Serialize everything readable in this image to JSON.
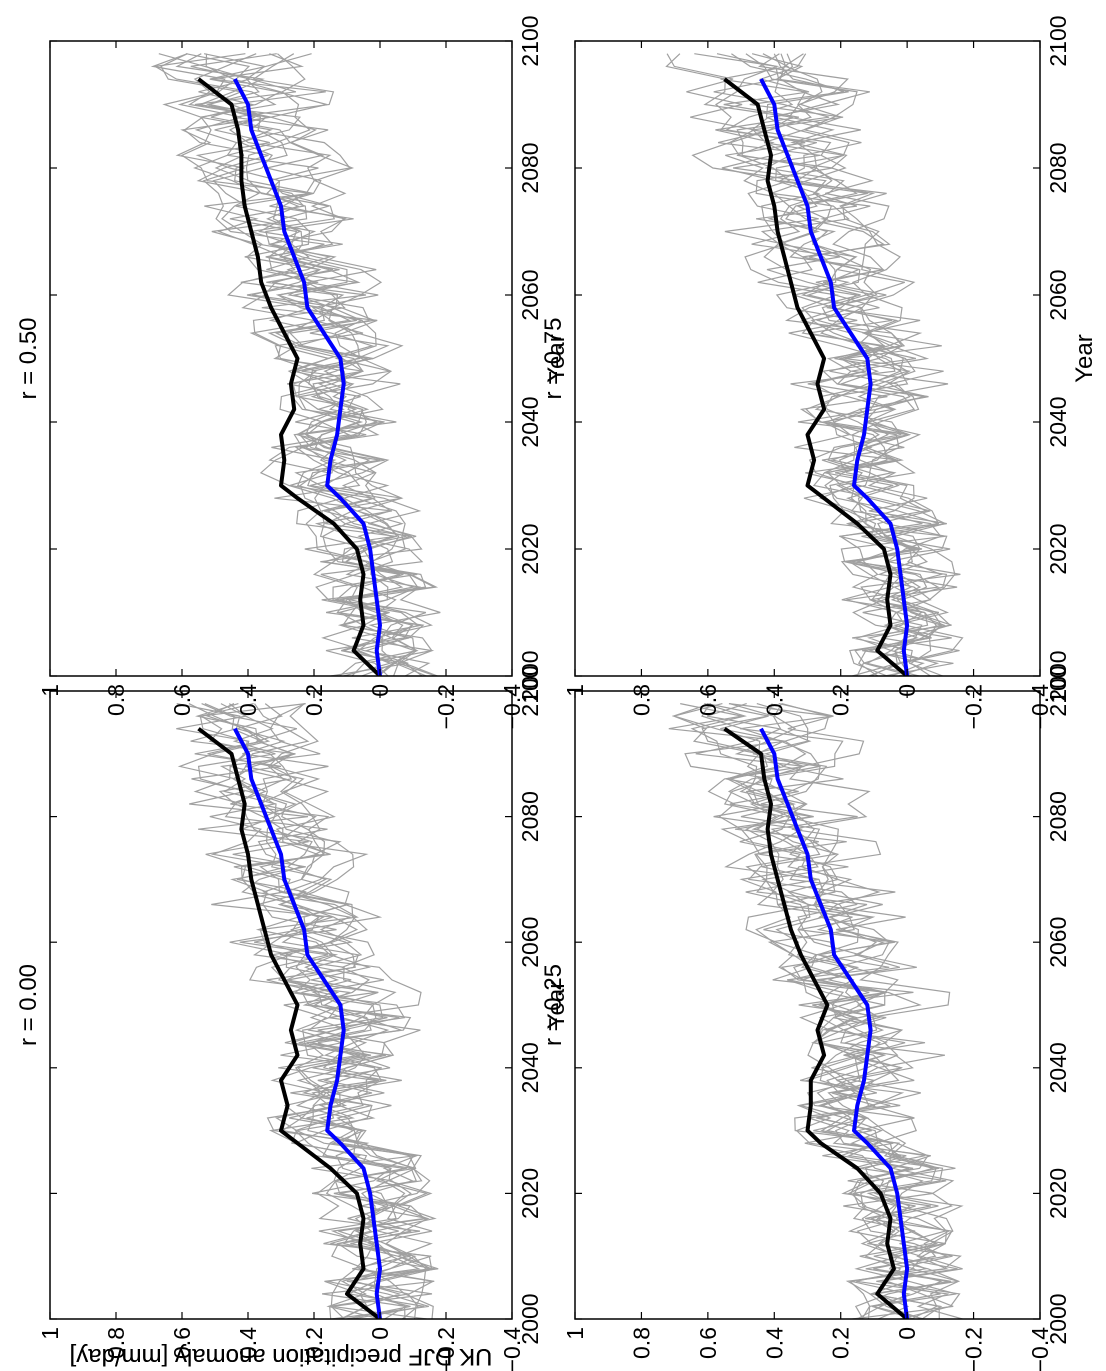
{
  "figure": {
    "ylabel": "UK DJF precipitation anomaly [mm/day]",
    "xlabel": "Year"
  },
  "chart_data": [
    {
      "type": "line",
      "title": "r = 0.00",
      "xlabel": "Year",
      "ylabel": "UK DJF precipitation anomaly [mm/day]",
      "xlim": [
        2000,
        2100
      ],
      "ylim": [
        -0.4,
        1
      ],
      "xticks": [
        2000,
        2020,
        2040,
        2060,
        2080,
        2100
      ],
      "xtick_labels": [
        "2000",
        "2020",
        "2040",
        "2060",
        "2080",
        "2100"
      ],
      "yticks": [
        -0.4,
        -0.2,
        0,
        0.2,
        0.4,
        0.6,
        0.8,
        1
      ],
      "ytick_labels": [
        "−0.4",
        "−0.2",
        "0",
        "0.2",
        "0.4",
        "0.6",
        "0.8",
        "1"
      ],
      "grid": false,
      "colors": {
        "ensemble": "#a0a0a0",
        "black_line": "#000000",
        "blue_line": "#0000ff"
      },
      "series": [
        {
          "x": [
            2000,
            2004,
            2008,
            2012,
            2016,
            2020,
            2024,
            2028,
            2030,
            2034,
            2038,
            2042,
            2046,
            2050,
            2054,
            2058,
            2062,
            2066,
            2070,
            2074,
            2078,
            2082,
            2086,
            2090,
            2094
          ],
          "values": [
            0.0,
            0.1,
            0.05,
            0.06,
            0.05,
            0.07,
            0.15,
            0.25,
            0.3,
            0.28,
            0.3,
            0.25,
            0.27,
            0.25,
            0.29,
            0.33,
            0.35,
            0.37,
            0.39,
            0.4,
            0.42,
            0.41,
            0.43,
            0.45,
            0.55
          ]
        },
        {
          "x": [
            2000,
            2004,
            2008,
            2012,
            2016,
            2020,
            2024,
            2028,
            2030,
            2034,
            2038,
            2042,
            2046,
            2050,
            2054,
            2058,
            2062,
            2066,
            2070,
            2074,
            2078,
            2082,
            2086,
            2090,
            2094
          ],
          "values": [
            0.0,
            0.01,
            0.0,
            0.01,
            0.02,
            0.03,
            0.05,
            0.12,
            0.16,
            0.15,
            0.13,
            0.12,
            0.11,
            0.12,
            0.17,
            0.22,
            0.23,
            0.26,
            0.29,
            0.3,
            0.33,
            0.36,
            0.39,
            0.4,
            0.44
          ]
        }
      ]
    },
    {
      "type": "line",
      "title": "r = 0.25",
      "xlabel": "",
      "ylabel": "",
      "xlim": [
        2000,
        2100
      ],
      "ylim": [
        -0.4,
        1
      ],
      "xticks": [
        2000,
        2020,
        2040,
        2060,
        2080,
        2100
      ],
      "xtick_labels": [
        "2000",
        "2020",
        "2040",
        "2060",
        "2080",
        "2100"
      ],
      "yticks": [
        -0.4,
        -0.2,
        0,
        0.2,
        0.4,
        0.6,
        0.8,
        1
      ],
      "ytick_labels": [
        "−0.4",
        "−0.2",
        "0",
        "0.2",
        "0.4",
        "0.6",
        "0.8",
        "1"
      ],
      "grid": false,
      "colors": {
        "ensemble": "#a0a0a0",
        "black_line": "#000000",
        "blue_line": "#0000ff"
      },
      "series": [
        {
          "x": [
            2000,
            2004,
            2008,
            2012,
            2016,
            2020,
            2024,
            2028,
            2030,
            2034,
            2038,
            2042,
            2046,
            2050,
            2054,
            2058,
            2062,
            2066,
            2070,
            2074,
            2078,
            2082,
            2086,
            2090,
            2094
          ],
          "values": [
            0.0,
            0.09,
            0.04,
            0.06,
            0.05,
            0.08,
            0.15,
            0.26,
            0.3,
            0.29,
            0.29,
            0.25,
            0.27,
            0.24,
            0.28,
            0.32,
            0.35,
            0.37,
            0.39,
            0.41,
            0.42,
            0.41,
            0.43,
            0.44,
            0.55
          ]
        },
        {
          "x": [
            2000,
            2004,
            2008,
            2012,
            2016,
            2020,
            2024,
            2028,
            2030,
            2034,
            2038,
            2042,
            2046,
            2050,
            2054,
            2058,
            2062,
            2066,
            2070,
            2074,
            2078,
            2082,
            2086,
            2090,
            2094
          ],
          "values": [
            0.0,
            0.01,
            0.0,
            0.01,
            0.02,
            0.03,
            0.05,
            0.12,
            0.16,
            0.15,
            0.13,
            0.12,
            0.11,
            0.12,
            0.17,
            0.22,
            0.23,
            0.26,
            0.29,
            0.3,
            0.33,
            0.36,
            0.39,
            0.4,
            0.44
          ]
        }
      ]
    },
    {
      "type": "line",
      "title": "r = 0.50",
      "xlabel": "Year",
      "ylabel": "UK DJF precipitation anomaly [mm/day]",
      "xlim": [
        2000,
        2100
      ],
      "ylim": [
        -0.4,
        1
      ],
      "xticks": [
        2000,
        2020,
        2040,
        2060,
        2080,
        2100
      ],
      "xtick_labels": [
        "2000",
        "2020",
        "2040",
        "2060",
        "2080",
        "2100"
      ],
      "yticks": [
        -0.4,
        -0.2,
        0,
        0.2,
        0.4,
        0.6,
        0.8,
        1
      ],
      "ytick_labels": [
        "−0.4",
        "−0.2",
        "0",
        "0.2",
        "0.4",
        "0.6",
        "0.8",
        "1"
      ],
      "grid": false,
      "colors": {
        "ensemble": "#a0a0a0",
        "black_line": "#000000",
        "blue_line": "#0000ff"
      },
      "series": [
        {
          "x": [
            2000,
            2004,
            2008,
            2012,
            2016,
            2020,
            2024,
            2028,
            2030,
            2034,
            2038,
            2042,
            2046,
            2050,
            2054,
            2058,
            2062,
            2066,
            2070,
            2074,
            2078,
            2082,
            2086,
            2090,
            2094
          ],
          "values": [
            0.0,
            0.08,
            0.05,
            0.06,
            0.05,
            0.07,
            0.14,
            0.25,
            0.3,
            0.29,
            0.3,
            0.26,
            0.27,
            0.25,
            0.29,
            0.33,
            0.36,
            0.37,
            0.39,
            0.41,
            0.42,
            0.42,
            0.43,
            0.45,
            0.55
          ]
        },
        {
          "x": [
            2000,
            2004,
            2008,
            2012,
            2016,
            2020,
            2024,
            2028,
            2030,
            2034,
            2038,
            2042,
            2046,
            2050,
            2054,
            2058,
            2062,
            2066,
            2070,
            2074,
            2078,
            2082,
            2086,
            2090,
            2094
          ],
          "values": [
            0.0,
            0.01,
            0.0,
            0.01,
            0.02,
            0.03,
            0.05,
            0.12,
            0.16,
            0.15,
            0.13,
            0.12,
            0.11,
            0.12,
            0.17,
            0.22,
            0.23,
            0.26,
            0.29,
            0.3,
            0.33,
            0.36,
            0.39,
            0.4,
            0.44
          ]
        }
      ]
    },
    {
      "type": "line",
      "title": "r = 0.75",
      "xlabel": "Year",
      "ylabel": "",
      "xlim": [
        2000,
        2100
      ],
      "ylim": [
        -0.4,
        1
      ],
      "xticks": [
        2000,
        2020,
        2040,
        2060,
        2080,
        2100
      ],
      "xtick_labels": [
        "2000",
        "2020",
        "2040",
        "2060",
        "2080",
        "2100"
      ],
      "yticks": [
        -0.4,
        -0.2,
        0,
        0.2,
        0.4,
        0.6,
        0.8,
        1
      ],
      "ytick_labels": [
        "−0.4",
        "−0.2",
        "0",
        "0.2",
        "0.4",
        "0.6",
        "0.8",
        "1"
      ],
      "grid": false,
      "colors": {
        "ensemble": "#a0a0a0",
        "black_line": "#000000",
        "blue_line": "#0000ff"
      },
      "series": [
        {
          "x": [
            2000,
            2004,
            2008,
            2012,
            2016,
            2020,
            2024,
            2028,
            2030,
            2034,
            2038,
            2042,
            2046,
            2050,
            2054,
            2058,
            2062,
            2066,
            2070,
            2074,
            2078,
            2082,
            2086,
            2090,
            2094
          ],
          "values": [
            0.0,
            0.09,
            0.05,
            0.06,
            0.05,
            0.07,
            0.15,
            0.25,
            0.3,
            0.28,
            0.3,
            0.25,
            0.27,
            0.25,
            0.29,
            0.33,
            0.35,
            0.37,
            0.39,
            0.4,
            0.42,
            0.41,
            0.43,
            0.45,
            0.55
          ]
        },
        {
          "x": [
            2000,
            2004,
            2008,
            2012,
            2016,
            2020,
            2024,
            2028,
            2030,
            2034,
            2038,
            2042,
            2046,
            2050,
            2054,
            2058,
            2062,
            2066,
            2070,
            2074,
            2078,
            2082,
            2086,
            2090,
            2094
          ],
          "values": [
            0.0,
            0.01,
            0.0,
            0.01,
            0.02,
            0.03,
            0.05,
            0.12,
            0.16,
            0.15,
            0.13,
            0.12,
            0.11,
            0.12,
            0.17,
            0.22,
            0.23,
            0.26,
            0.29,
            0.3,
            0.33,
            0.36,
            0.39,
            0.4,
            0.44
          ]
        }
      ]
    }
  ]
}
